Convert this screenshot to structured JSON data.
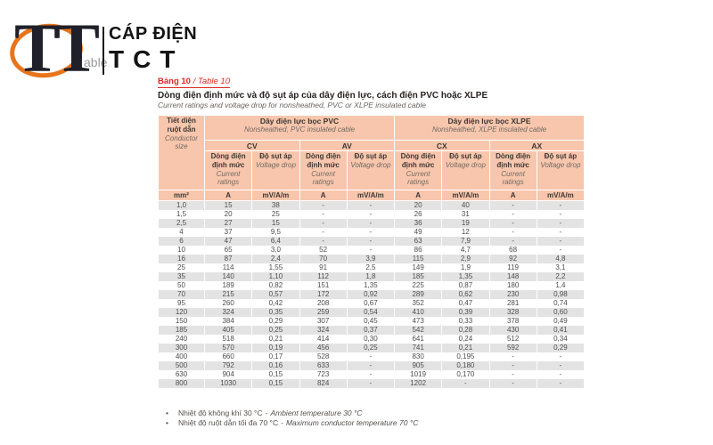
{
  "logo": {
    "tt": "TT",
    "able": "able",
    "cap_dien": "CÁP ĐIỆN",
    "tct": "TCT"
  },
  "page": {
    "table_label_vn": "Bảng 10",
    "table_label_sep": " / ",
    "table_label_en": "Table 10",
    "title_vn": "Dòng điện định mức và độ sụt áp của dây điện lực, cách điện PVC hoặc XLPE",
    "title_en": "Current ratings and voltage drop for nonsheathed, PVC or XLPE insulated cable"
  },
  "table": {
    "conductor_header_vn": "Tiết diện ruột dẫn",
    "conductor_header_en": "Conductor size",
    "groups": [
      {
        "vn": "Dây điện lực bọc PVC",
        "en": "Nonsheathed, PVC  insulated cable",
        "subgroups": [
          "CV",
          "AV"
        ]
      },
      {
        "vn": "Dây điện lực bọc XLPE",
        "en": "Nonsheathed, XLPE  insulated cable",
        "subgroups": [
          "CX",
          "AX"
        ]
      }
    ],
    "col_current_vn": "Dòng điện định mức",
    "col_current_en": "Current ratings",
    "col_voltage_vn": "Độ sụt áp",
    "col_voltage_en": "Voltage drop",
    "units": [
      "mm²",
      "A",
      "mV/A/m",
      "A",
      "mV/A/m",
      "A",
      "mV/A/m",
      "A",
      "mV/A/m"
    ],
    "rows": [
      [
        "1,0",
        "15",
        "38",
        "-",
        "-",
        "20",
        "40",
        "-",
        "-"
      ],
      [
        "1,5",
        "20",
        "25",
        "-",
        "-",
        "26",
        "31",
        "-",
        "-"
      ],
      [
        "2,5",
        "27",
        "15",
        "-",
        "-",
        "36",
        "19",
        "-",
        "-"
      ],
      [
        "4",
        "37",
        "9,5",
        "-",
        "-",
        "49",
        "12",
        "-",
        "-"
      ],
      [
        "6",
        "47",
        "6,4",
        "-",
        "-",
        "63",
        "7,9",
        "-",
        "-"
      ],
      [
        "10",
        "65",
        "3,0",
        "52",
        "-",
        "86",
        "4,7",
        "68",
        "-"
      ],
      [
        "16",
        "87",
        "2,4",
        "70",
        "3,9",
        "115",
        "2,9",
        "92",
        "4,8"
      ],
      [
        "25",
        "114",
        "1,55",
        "91",
        "2,5",
        "149",
        "1,9",
        "119",
        "3,1"
      ],
      [
        "35",
        "140",
        "1,10",
        "112",
        "1,8",
        "185",
        "1,35",
        "148",
        "2,2"
      ],
      [
        "50",
        "189",
        "0,82",
        "151",
        "1,35",
        "225",
        "0,87",
        "180",
        "1,4"
      ],
      [
        "70",
        "215",
        "0,57",
        "172",
        "0,92",
        "289",
        "0,62",
        "230",
        "0,98"
      ],
      [
        "95",
        "260",
        "0,42",
        "208",
        "0,67",
        "352",
        "0,47",
        "281",
        "0,74"
      ],
      [
        "120",
        "324",
        "0,35",
        "259",
        "0,54",
        "410",
        "0,39",
        "328",
        "0,60"
      ],
      [
        "150",
        "384",
        "0,29",
        "307",
        "0,45",
        "473",
        "0,33",
        "378",
        "0,49"
      ],
      [
        "185",
        "405",
        "0,25",
        "324",
        "0,37",
        "542",
        "0,28",
        "430",
        "0,41"
      ],
      [
        "240",
        "518",
        "0,21",
        "414",
        "0,30",
        "641",
        "0,24",
        "512",
        "0,34"
      ],
      [
        "300",
        "570",
        "0,19",
        "456",
        "0,25",
        "741",
        "0,21",
        "592",
        "0,29"
      ],
      [
        "400",
        "660",
        "0,17",
        "528",
        "-",
        "830",
        "0,195",
        "-",
        "-"
      ],
      [
        "500",
        "792",
        "0,16",
        "633",
        "-",
        "905",
        "0,180",
        "-",
        "-"
      ],
      [
        "630",
        "904",
        "0,15",
        "723",
        "-",
        "1019",
        "0,170",
        "-",
        "-"
      ],
      [
        "800",
        "1030",
        "0,15",
        "824",
        "-",
        "1202",
        "-",
        "-",
        "-"
      ]
    ]
  },
  "footnotes": [
    {
      "vn": "Nhiệt độ không khí 30 °C",
      "sep": "-",
      "en": "Ambient temperature 30 °C"
    },
    {
      "vn": "Nhiệt độ ruột dẫn tối đa 70 °C",
      "sep": "-",
      "en": "Maximum conductor temperature 70 °C"
    }
  ],
  "colors": {
    "accent_red": "#de2820",
    "table_header_bg": "#f8c6ac",
    "row_alt_bg": "#e3e3e3",
    "logo_orange": "#e8751a"
  }
}
